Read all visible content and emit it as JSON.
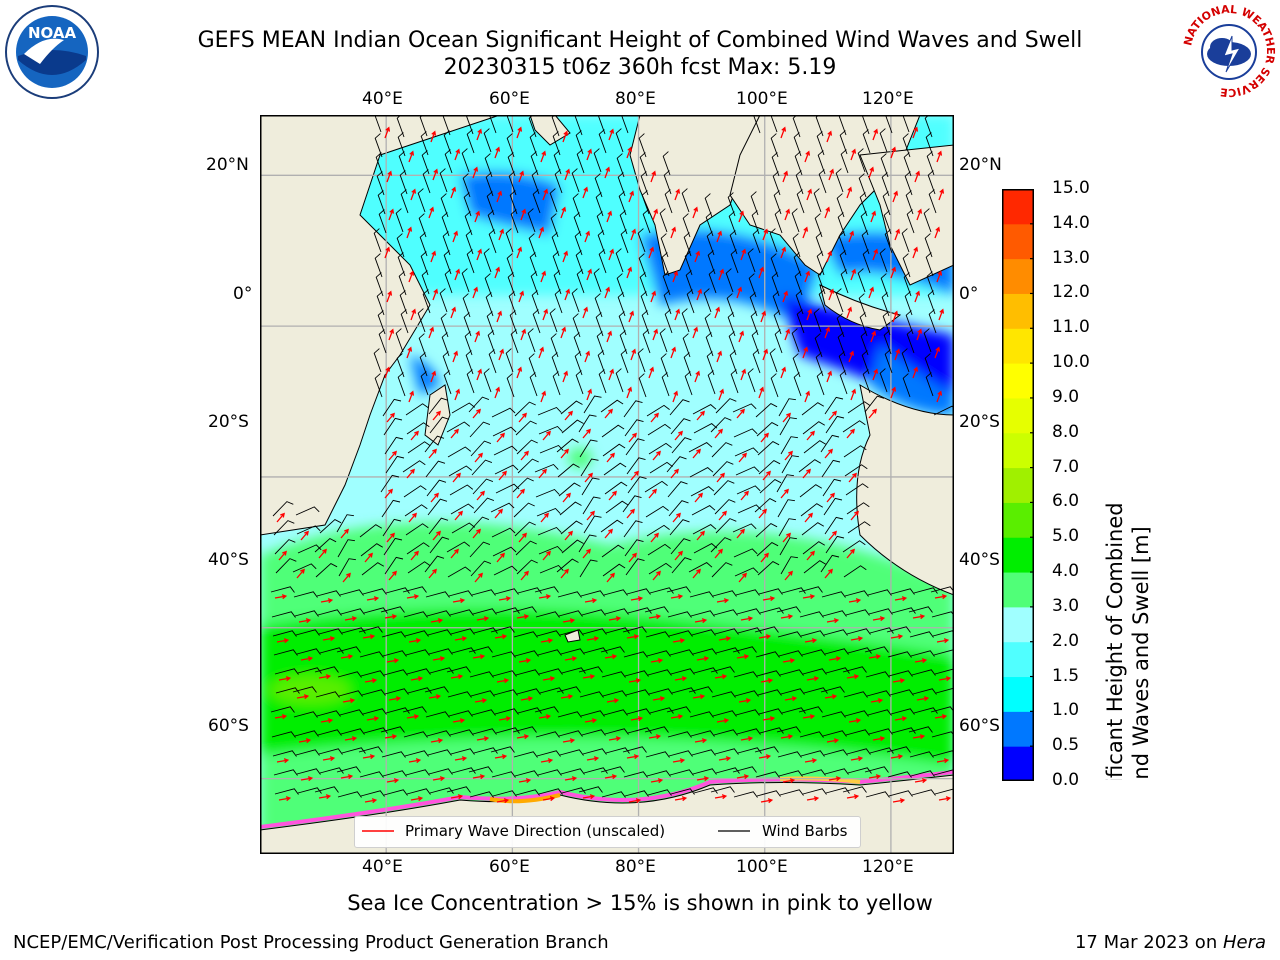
{
  "header": {
    "title_line1": "GEFS MEAN Indian Ocean Significant Height of Combined Wind Waves and Swell",
    "title_line2": "20230315 t06z 360h fcst   Max: 5.19"
  },
  "logos": {
    "noaa": {
      "text": "NOAA",
      "icon": "noaa-logo-icon"
    },
    "nws": {
      "text": "NATIONAL WEATHER SERVICE",
      "icon": "nws-logo-icon"
    }
  },
  "map": {
    "lon_ticks_top": [
      "40°E",
      "60°E",
      "80°E",
      "100°E",
      "120°E"
    ],
    "lon_ticks_bottom": [
      "40°E",
      "60°E",
      "80°E",
      "100°E",
      "120°E"
    ],
    "lat_ticks_left": [
      "20°N",
      "0°",
      "20°S",
      "40°S",
      "60°S"
    ],
    "lat_ticks_right": [
      "20°N",
      "0°",
      "20°S",
      "40°S",
      "60°S"
    ],
    "extent": {
      "lon_min": 20,
      "lon_max": 130,
      "lat_min": -70,
      "lat_max": 28
    },
    "colors": {
      "land": "#efeddc",
      "coast": "#000000",
      "wave_arrow": "#ff0000",
      "wind_barb": "#000000",
      "grid": "#b0b0b0"
    }
  },
  "legend": {
    "wave_label": "Primary Wave Direction (unscaled)",
    "barb_label": "Wind Barbs"
  },
  "colorbar": {
    "label_line1": "Significant Height of Combined",
    "label_line2": "Wind Waves and Swell [m]",
    "ticks": [
      "15.0",
      "14.0",
      "13.0",
      "12.0",
      "11.0",
      "10.0",
      "9.0",
      "8.0",
      "7.0",
      "6.0",
      "5.0",
      "4.0",
      "3.0",
      "2.0",
      "1.5",
      "1.0",
      "0.5",
      "0.0"
    ],
    "colors_bottom_to_top": [
      "#0000ff",
      "#0078ff",
      "#00ffff",
      "#50ffff",
      "#a0ffff",
      "#50ff78",
      "#00ee00",
      "#5aee00",
      "#a0f000",
      "#ccff00",
      "#e6ff00",
      "#ffff00",
      "#ffe600",
      "#ffbe00",
      "#ff8c00",
      "#ff5a00",
      "#ff2800"
    ]
  },
  "footer": {
    "sea_ice_note": "Sea Ice Concentration > 15% is shown in pink to yellow",
    "producer": "NCEP/EMC/Verification Post Processing Product Generation Branch",
    "date": "17 Mar 2023 on ",
    "machine": "Hera"
  }
}
